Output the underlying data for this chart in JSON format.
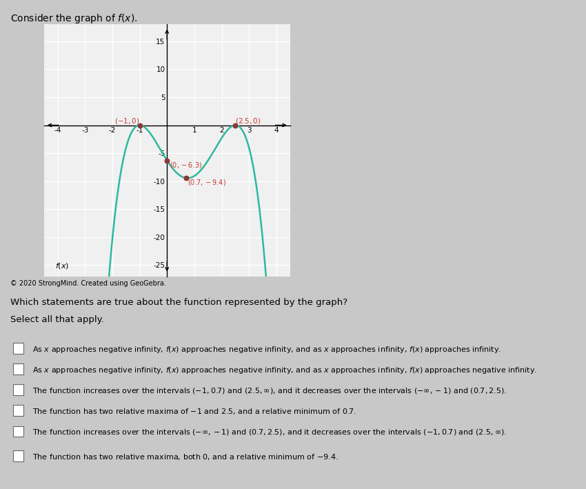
{
  "title": "Consider the graph of $f(x)$.",
  "copyright": "© 2020 StrongMind. Created using GeoGebra.",
  "question": "Which statements are true about the function represented by the graph?",
  "instruction": "Select all that apply.",
  "graph_xlim": [
    -4.5,
    4.5
  ],
  "graph_ylim": [
    -27,
    18
  ],
  "curve_color": "#2db89e",
  "point_color": "#8b3838",
  "label_color": "#c0392b",
  "bg_color": "#f0f0f0",
  "page_color": "#c8c8c8",
  "grid_color": "#d0d0d0",
  "key_points_x": [
    -1.0,
    2.5,
    0.0,
    0.7
  ],
  "key_points_y": [
    0.0,
    0.0,
    -6.3,
    -9.4
  ],
  "options": [
    "As $x$ approaches negative infinity, $f(x)$ approaches negative infinity, and as $x$ approaches infinity, $f(x)$ approaches infinity.",
    "As $x$ approaches negative infinity, $f(x)$ approaches negative infinity, and as $x$ approaches infinity, $f(x)$ approaches negative infinity.",
    "The function increases over the intervals $(-1, 0.7)$ and $(2.5, \\infty)$, and it decreases over the intervals $(-\\infty, -1)$ and $(0.7, 2.5)$.",
    "The function has two relative maxima of $-1$ and $2.5$, and a relative minimum of $0.7$.",
    "The function increases over the intervals $(-\\infty, -1)$ and $(0.7, 2.5)$, and it decreases over the intervals $(-1, 0.7)$ and $(2.5, \\infty)$.",
    "The function has two relative maxima, both $0$, and a relative minimum of $-9.4$."
  ]
}
